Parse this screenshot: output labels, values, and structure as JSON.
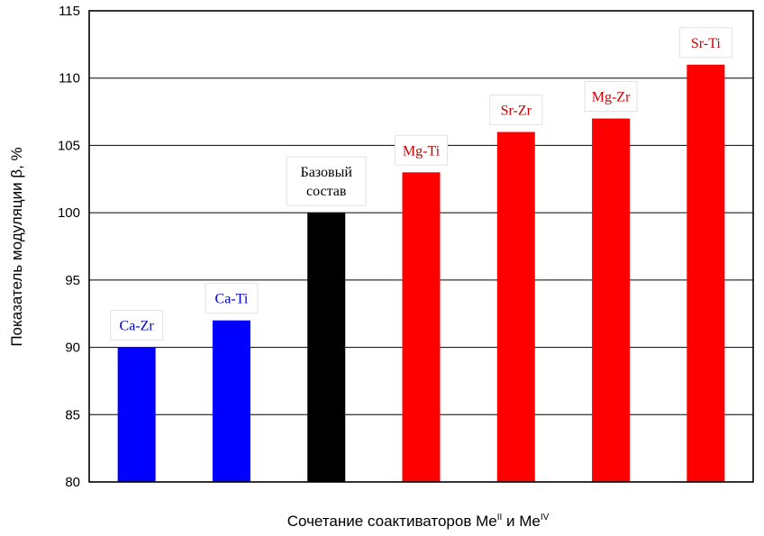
{
  "chart_data": {
    "type": "bar",
    "xlabel": {
      "main": "Сочетание соактиваторов Me",
      "sup1": "II",
      "mid": " и Me",
      "sup2": "IV"
    },
    "ylabel": "Показатель модуляции β, %",
    "ylim": [
      80,
      115
    ],
    "yticks": [
      "80",
      "85",
      "90",
      "95",
      "100",
      "105",
      "110",
      "115"
    ],
    "grid": true,
    "bars": [
      {
        "label": "Ca-Zr",
        "value": 90,
        "color": "#0000ff",
        "label_color": "#0000cc"
      },
      {
        "label": "Ca-Ti",
        "value": 92,
        "color": "#0000ff",
        "label_color": "#0000cc"
      },
      {
        "label": [
          "Базовый",
          "состав"
        ],
        "value": 100,
        "color": "#000000",
        "label_color": "#000000"
      },
      {
        "label": "Mg-Ti",
        "value": 103,
        "color": "#ff0000",
        "label_color": "#cc0000"
      },
      {
        "label": "Sr-Zr",
        "value": 106,
        "color": "#ff0000",
        "label_color": "#cc0000"
      },
      {
        "label": "Mg-Zr",
        "value": 107,
        "color": "#ff0000",
        "label_color": "#cc0000"
      },
      {
        "label": "Sr-Ti",
        "value": 111,
        "color": "#ff0000",
        "label_color": "#cc0000"
      }
    ]
  }
}
